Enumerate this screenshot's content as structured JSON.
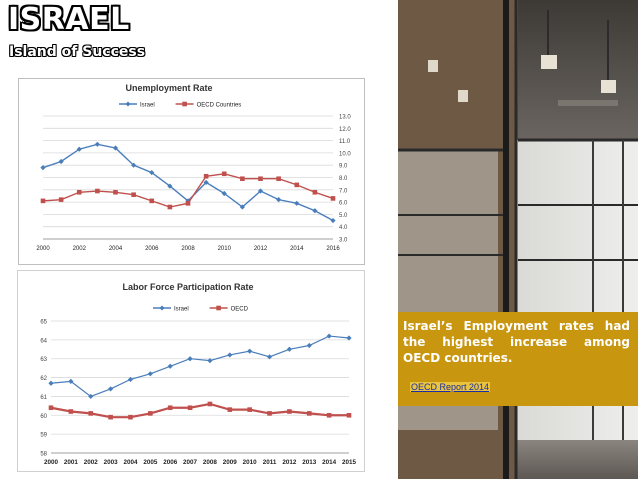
{
  "slide": {
    "title": "ISRAEL",
    "subtitle": "Island of Success"
  },
  "callout": {
    "text": "Israel’s Employment rates had the highest increase among OECD countries.",
    "link": "OECD Report 2014"
  },
  "colors": {
    "israel": "#4a7ebb",
    "oecd": "#c0504d",
    "callout_bg": "#c8960f"
  },
  "chart_data": [
    {
      "type": "line",
      "title": "Unemployment Rate",
      "x": [
        2000,
        2001,
        2002,
        2003,
        2004,
        2005,
        2006,
        2007,
        2008,
        2009,
        2010,
        2011,
        2012,
        2013,
        2014,
        2015,
        2016
      ],
      "series": [
        {
          "name": "Israel",
          "values": [
            8.8,
            9.3,
            10.3,
            10.7,
            10.4,
            9.0,
            8.4,
            7.3,
            6.1,
            7.6,
            6.7,
            5.6,
            6.9,
            6.2,
            5.9,
            5.3,
            4.5
          ]
        },
        {
          "name": "OECD Countries",
          "values": [
            6.1,
            6.2,
            6.8,
            6.9,
            6.8,
            6.6,
            6.1,
            5.6,
            5.9,
            8.1,
            8.3,
            7.9,
            7.9,
            7.9,
            7.4,
            6.8,
            6.3
          ]
        }
      ],
      "x_ticks": [
        "2000",
        "2002",
        "2004",
        "2006",
        "2008",
        "2010",
        "2012",
        "2014",
        "2016"
      ],
      "y_ticks": [
        "3.0",
        "4.0",
        "5.0",
        "6.0",
        "7.0",
        "8.0",
        "9.0",
        "10.0",
        "11.0",
        "12.0",
        "13.0"
      ],
      "ylim": [
        3,
        13
      ],
      "y_axis_side": "right",
      "legend": "top"
    },
    {
      "type": "line",
      "title": "Labor Force Participation Rate",
      "x": [
        2000,
        2001,
        2002,
        2003,
        2004,
        2005,
        2006,
        2007,
        2008,
        2009,
        2010,
        2011,
        2012,
        2013,
        2014,
        2015
      ],
      "series": [
        {
          "name": "Israel",
          "values": [
            61.7,
            61.8,
            61.0,
            61.4,
            61.9,
            62.2,
            62.6,
            63.0,
            62.9,
            63.2,
            63.4,
            63.1,
            63.5,
            63.7,
            64.2,
            64.1
          ]
        },
        {
          "name": "OECD",
          "values": [
            60.4,
            60.2,
            60.1,
            59.9,
            59.9,
            60.1,
            60.4,
            60.4,
            60.6,
            60.3,
            60.3,
            60.1,
            60.2,
            60.1,
            60.0,
            60.0
          ]
        }
      ],
      "x_ticks": [
        "2000",
        "2001",
        "2002",
        "2003",
        "2004",
        "2005",
        "2006",
        "2007",
        "2008",
        "2009",
        "2010",
        "2011",
        "2012",
        "2013",
        "2014",
        "2015"
      ],
      "y_ticks": [
        "58",
        "59",
        "60",
        "61",
        "62",
        "63",
        "64",
        "65"
      ],
      "ylim": [
        58,
        65
      ],
      "y_axis_side": "left",
      "legend": "top"
    }
  ]
}
